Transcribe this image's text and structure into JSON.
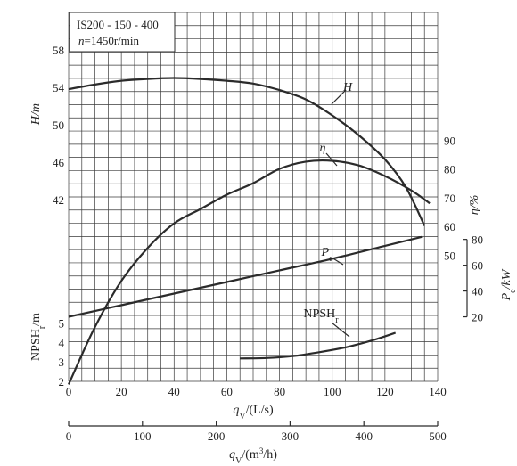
{
  "chart_data": {
    "type": "line",
    "info": {
      "model": "IS200 - 150 - 400",
      "speed_var": "n",
      "speed_value": "=1450r/min"
    },
    "x_axis": {
      "label_var": "q",
      "label_sub": "V",
      "label_unit": "/(L/s)",
      "range": [
        0,
        140
      ],
      "ticks": [
        "0",
        "20",
        "40",
        "60",
        "80",
        "100",
        "120",
        "140"
      ]
    },
    "x2_axis": {
      "label_var": "q",
      "label_sub": "V",
      "label_unit": "/(m",
      "label_sup": "3",
      "label_unit2": "/h)",
      "range": [
        0,
        500
      ],
      "ticks": [
        "0",
        "100",
        "200",
        "300",
        "400",
        "500"
      ]
    },
    "y_axes": {
      "H": {
        "label": "H/m",
        "range": [
          38,
          62
        ],
        "ticks": [
          "42",
          "46",
          "50",
          "54",
          "58"
        ]
      },
      "eta": {
        "label": "η/%",
        "range": [
          40,
          100
        ],
        "ticks": [
          "50",
          "60",
          "70",
          "80",
          "90"
        ]
      },
      "Pe": {
        "label_var": "P",
        "label_sub": "e",
        "label_unit": "/kW",
        "range": [
          0,
          90
        ],
        "ticks": [
          "20",
          "40",
          "60",
          "80"
        ]
      },
      "NPSHr": {
        "label_var": "NPSH",
        "label_sub": "r",
        "label_unit": "/m",
        "range": [
          2,
          7
        ],
        "ticks": [
          "2",
          "3",
          "4",
          "5"
        ]
      }
    },
    "series": [
      {
        "name": "H",
        "label_var": "H",
        "label_sub": "",
        "axis": "H",
        "x": [
          0,
          10,
          20,
          30,
          40,
          50,
          60,
          70,
          80,
          90,
          100,
          110,
          120,
          128,
          135
        ],
        "y": [
          53.8,
          54.3,
          54.7,
          54.9,
          55.0,
          54.9,
          54.7,
          54.4,
          53.7,
          52.7,
          51.0,
          48.9,
          46.3,
          43.3,
          39.2
        ]
      },
      {
        "name": "η",
        "label_var": "η",
        "label_sub": "",
        "axis": "eta",
        "x": [
          0,
          10,
          20,
          30,
          40,
          50,
          60,
          70,
          80,
          90,
          100,
          110,
          120,
          130,
          137
        ],
        "y": [
          5,
          25,
          41,
          52.5,
          61,
          66,
          71,
          75,
          80,
          82.5,
          82.8,
          81.2,
          77.5,
          72.5,
          68
        ]
      },
      {
        "name": "Pe",
        "label_var": "P",
        "label_sub": "e",
        "axis": "Pe",
        "x": [
          0,
          20,
          40,
          60,
          80,
          100,
          120,
          134
        ],
        "y": [
          20,
          29,
          38,
          47,
          56,
          65,
          75,
          82
        ]
      },
      {
        "name": "NPSHr",
        "label_var": "NPSH",
        "label_sub": "r",
        "axis": "NPSHr",
        "x": [
          65,
          75,
          85,
          95,
          105,
          115,
          124
        ],
        "y": [
          3.18,
          3.2,
          3.3,
          3.5,
          3.75,
          4.1,
          4.5
        ]
      }
    ],
    "grid": true
  }
}
